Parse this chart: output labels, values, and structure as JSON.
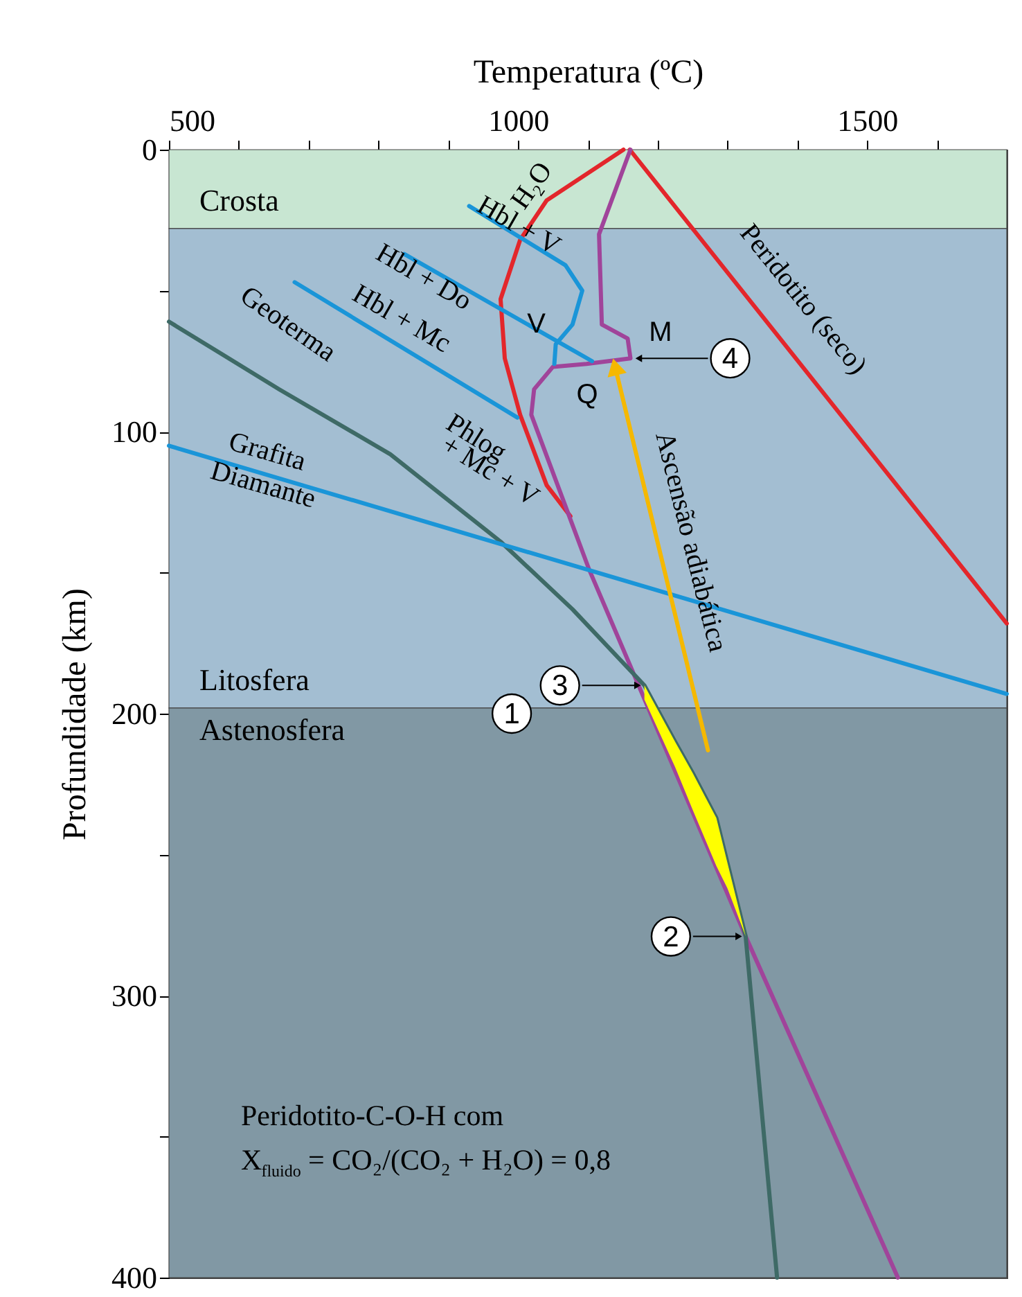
{
  "chart_data": {
    "type": "line",
    "xlabel": "Temperatura (ºC)",
    "ylabel": "Profundidade (km)",
    "xlim": [
      500,
      1700
    ],
    "ylim": [
      400,
      0
    ],
    "xticks": [
      500,
      {
        "value": 600,
        "label": null
      },
      {
        "value": 700,
        "label": null
      },
      {
        "value": 800,
        "label": null
      },
      {
        "value": 900,
        "label": null
      },
      1000,
      {
        "value": 1100,
        "label": null
      },
      {
        "value": 1200,
        "label": null
      },
      {
        "value": 1300,
        "label": null
      },
      {
        "value": 1400,
        "label": null
      },
      1500,
      {
        "value": 1600,
        "label": null
      }
    ],
    "yticks": [
      0,
      {
        "value": 50,
        "label": null
      },
      100,
      {
        "value": 150,
        "label": null
      },
      200,
      {
        "value": 250,
        "label": null
      },
      300,
      {
        "value": 350,
        "label": null
      },
      400
    ],
    "grid": false,
    "bands": [
      {
        "axis": "y",
        "from": 0,
        "to": 28,
        "label": "Crosta",
        "color": "#c8e6d2"
      },
      {
        "axis": "y",
        "from": 28,
        "to": 198,
        "label": "Litosfera",
        "color": "#a3bed2"
      },
      {
        "axis": "y",
        "from": 198,
        "to": 400,
        "label": "Astenosfera",
        "color": "#8198a4"
      }
    ],
    "series": [
      {
        "type": "line",
        "color": "#e3262b",
        "x": [
          1151,
          1041,
          1003,
          975,
          981,
          1003,
          1041,
          1075
        ],
        "values": [
          0,
          18,
          32,
          53,
          74,
          94,
          119,
          130
        ]
      },
      {
        "type": "line",
        "color": "#e3262b",
        "x": [
          1160,
          1700
        ],
        "values": [
          0,
          168
        ]
      },
      {
        "type": "line",
        "color": "#a0449a",
        "x": [
          1161,
          1116,
          1120,
          1157,
          1161,
          1098,
          1050,
          1023,
          1019,
          1102,
          1171,
          1326,
          1544
        ],
        "values": [
          0,
          30,
          62,
          67,
          74,
          76,
          77,
          85,
          94,
          149,
          189,
          279,
          400
        ]
      },
      {
        "type": "line",
        "color": "#3e6a66",
        "x": [
          500,
          658,
          817,
          975,
          1078,
          1181,
          1225,
          1250,
          1284,
          1300,
          1326,
          1371
        ],
        "values": [
          61,
          85,
          108,
          139,
          163,
          190,
          210,
          221,
          237,
          253,
          279,
          400
        ],
        "lower": [
          null,
          null,
          null,
          null,
          null,
          190,
          210,
          221,
          237,
          253,
          279,
          null
        ],
        "upper": [
          null,
          null,
          null,
          null,
          null,
          195,
          219,
          234,
          254,
          262,
          279,
          null
        ]
      },
      {
        "type": "line",
        "color": "#1a95d8",
        "x": [
          500,
          1700
        ],
        "values": [
          105,
          193
        ]
      },
      {
        "type": "line",
        "color": "#1a95d8",
        "x": [
          930,
          1068,
          1092,
          1078,
          1054,
          1052
        ],
        "values": [
          20,
          41,
          50,
          62,
          69,
          76
        ]
      },
      {
        "type": "line",
        "color": "#1a95d8",
        "x": [
          837,
          1106
        ],
        "values": [
          37,
          75
        ]
      },
      {
        "type": "line",
        "color": "#1a95d8",
        "x": [
          680,
          999
        ],
        "values": [
          47,
          95
        ]
      },
      {
        "type": "line",
        "color": "#f5b800",
        "x": [
          1272,
          1140
        ],
        "values": [
          213,
          78
        ]
      }
    ],
    "annotations": [
      "H₂O",
      {
        "text": "Hbl + V",
        "x": 1001,
        "y": 27
      },
      "Hbl + Do",
      "Hbl + Mc",
      "Geoterma",
      "Phlog",
      "+ Mc + V",
      "Grafita",
      "Diamante",
      "Peridotito (seco)",
      "Ascensão adiabática",
      {
        "text": "V",
        "x": 1056,
        "y": 64
      },
      "M",
      "Q",
      {
        "text": "1",
        "x": 991,
        "y": 200
      },
      {
        "text": "2",
        "x": 1326,
        "y": 279
      },
      {
        "text": "3",
        "x": 1181,
        "y": 190
      },
      {
        "text": "4",
        "x": 1163,
        "y": 74
      },
      "Peridotito-C-O-H com",
      "X$_{fluido}$= CO₂/(CO₂ + H₂O) = 0,8"
    ]
  }
}
